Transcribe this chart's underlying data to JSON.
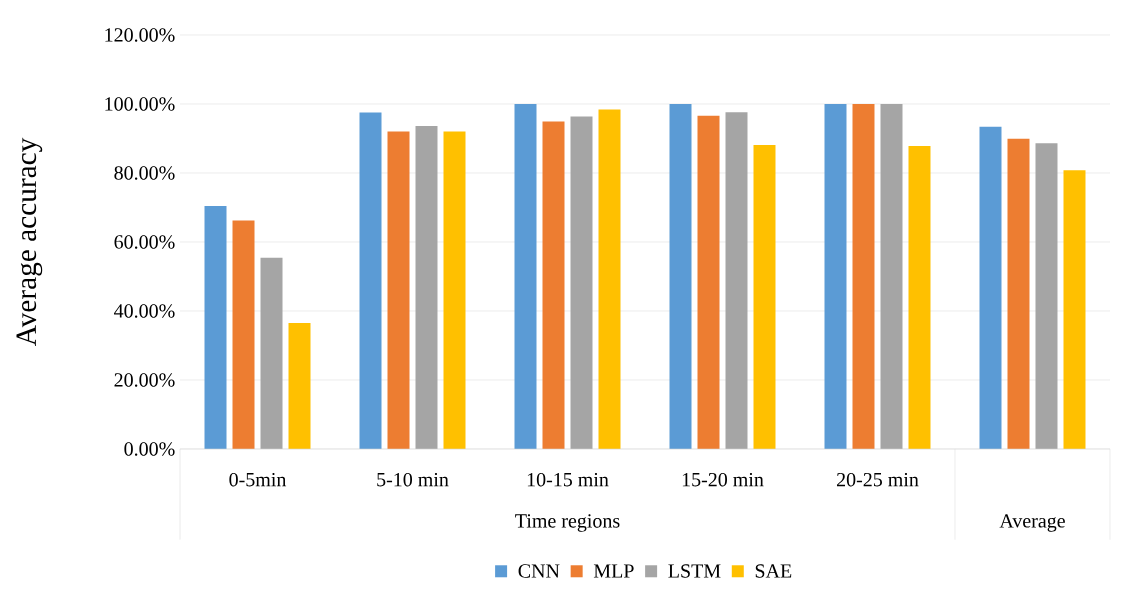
{
  "chart_data": {
    "type": "bar",
    "ylabel": "Average accuracy",
    "xlabel": "Time regions",
    "categories": [
      "0-5min",
      "5-10 min",
      "10-15 min",
      "15-20 min",
      "20-25 min",
      null
    ],
    "annotations": [
      "Average"
    ],
    "series": [
      {
        "name": "CNN",
        "color": "#5b9bd5",
        "values": [
          70.4,
          97.5,
          100,
          100,
          100,
          93.4
        ]
      },
      {
        "name": "MLP",
        "color": "#ed7d31",
        "values": [
          66.2,
          92.0,
          94.9,
          96.6,
          100,
          89.9
        ]
      },
      {
        "name": "LSTM",
        "color": "#a5a5a5",
        "values": [
          55.4,
          93.6,
          96.4,
          97.6,
          100,
          88.6
        ]
      },
      {
        "name": "SAE",
        "color": "#ffc000",
        "values": [
          36.5,
          92.0,
          98.4,
          88.1,
          87.8,
          80.8
        ]
      }
    ],
    "ylim": [
      0,
      120
    ],
    "yticks": [
      {
        "value": 0,
        "label": "0.00%"
      },
      {
        "value": 20,
        "label": "20.00%"
      },
      {
        "value": 40,
        "label": "40.00%"
      },
      {
        "value": 60,
        "label": "60.00%"
      },
      {
        "value": 80,
        "label": "80.00%"
      },
      {
        "value": 100,
        "label": "100.00%"
      },
      {
        "value": 120,
        "label": "120.00%"
      }
    ],
    "grid": "y",
    "legend": "bottom"
  }
}
